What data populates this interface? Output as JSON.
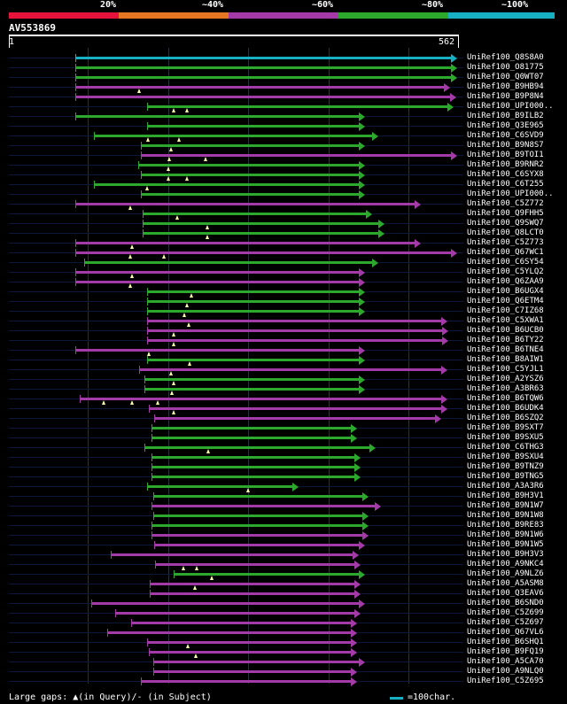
{
  "query": {
    "id": "AV553869",
    "start": "1",
    "end": "562",
    "length": 562
  },
  "identity_legend": [
    {
      "label": "20%",
      "color": "#e8133a"
    },
    {
      "label": "~40%",
      "color": "#e57722"
    },
    {
      "label": "~60%",
      "color": "#a33aa8"
    },
    {
      "label": "~80%",
      "color": "#2ca92c"
    },
    {
      "label": "~100%",
      "color": "#17b0c3"
    }
  ],
  "hit_colors": {
    "cyan": "#17b0c3",
    "green": "#2ca92c",
    "magenta": "#a33aa8"
  },
  "hits": [
    {
      "label": "UniRef100_Q8S8A0",
      "color": "cyan",
      "q_start": 84,
      "q_end": 562,
      "gaps": []
    },
    {
      "label": "UniRef100_O81775",
      "color": "green",
      "q_start": 84,
      "q_end": 560,
      "gaps": []
    },
    {
      "label": "UniRef100_Q0WT07",
      "color": "green",
      "q_start": 84,
      "q_end": 560,
      "gaps": []
    },
    {
      "label": "UniRef100_B9HB94",
      "color": "magenta",
      "q_start": 84,
      "q_end": 549,
      "gaps": [
        164
      ]
    },
    {
      "label": "UniRef100_B9P8N4",
      "color": "magenta",
      "q_start": 84,
      "q_end": 556,
      "gaps": []
    },
    {
      "label": "UniRef100_UPI000..",
      "color": "green",
      "q_start": 174,
      "q_end": 553,
      "gaps": [
        207,
        223
      ]
    },
    {
      "label": "UniRef100_B9ILB2",
      "color": "green",
      "q_start": 84,
      "q_end": 442,
      "gaps": []
    },
    {
      "label": "UniRef100_Q3E965",
      "color": "green",
      "q_start": 174,
      "q_end": 442,
      "gaps": []
    },
    {
      "label": "UniRef100_C6SVD9",
      "color": "green",
      "q_start": 107,
      "q_end": 459,
      "gaps": [
        175,
        213
      ]
    },
    {
      "label": "UniRef100_B9N8S7",
      "color": "green",
      "q_start": 166,
      "q_end": 442,
      "gaps": [
        204
      ]
    },
    {
      "label": "UniRef100_B9TOI1",
      "color": "magenta",
      "q_start": 166,
      "q_end": 566,
      "gaps": [
        201,
        247
      ]
    },
    {
      "label": "UniRef100_B9RNR2",
      "color": "green",
      "q_start": 163,
      "q_end": 442,
      "gaps": [
        200
      ]
    },
    {
      "label": "UniRef100_C6SYX8",
      "color": "green",
      "q_start": 166,
      "q_end": 442,
      "gaps": [
        200,
        223
      ]
    },
    {
      "label": "UniRef100_C6T255",
      "color": "green",
      "q_start": 107,
      "q_end": 442,
      "gaps": [
        174
      ]
    },
    {
      "label": "UniRef100_UPI000..",
      "color": "green",
      "q_start": 166,
      "q_end": 442,
      "gaps": []
    },
    {
      "label": "UniRef100_C5Z772",
      "color": "magenta",
      "q_start": 84,
      "q_end": 512,
      "gaps": [
        153
      ]
    },
    {
      "label": "UniRef100_Q9FHH5",
      "color": "green",
      "q_start": 168,
      "q_end": 451,
      "gaps": [
        211
      ]
    },
    {
      "label": "UniRef100_Q9SWQ7",
      "color": "green",
      "q_start": 168,
      "q_end": 467,
      "gaps": [
        249
      ]
    },
    {
      "label": "UniRef100_Q8LCT0",
      "color": "green",
      "q_start": 168,
      "q_end": 467,
      "gaps": [
        249
      ]
    },
    {
      "label": "UniRef100_C5Z773",
      "color": "magenta",
      "q_start": 84,
      "q_end": 512,
      "gaps": [
        155
      ]
    },
    {
      "label": "UniRef100_Q67WC1",
      "color": "magenta",
      "q_start": 84,
      "q_end": 568,
      "gaps": [
        153,
        195
      ]
    },
    {
      "label": "UniRef100_C6SY54",
      "color": "green",
      "q_start": 95,
      "q_end": 459,
      "gaps": []
    },
    {
      "label": "UniRef100_C5YLQ2",
      "color": "magenta",
      "q_start": 84,
      "q_end": 442,
      "gaps": [
        155
      ]
    },
    {
      "label": "UniRef100_Q6ZAA9",
      "color": "magenta",
      "q_start": 84,
      "q_end": 442,
      "gaps": [
        153
      ]
    },
    {
      "label": "UniRef100_B6UGX4",
      "color": "green",
      "q_start": 174,
      "q_end": 442,
      "gaps": [
        229
      ]
    },
    {
      "label": "UniRef100_Q6ETM4",
      "color": "green",
      "q_start": 174,
      "q_end": 442,
      "gaps": [
        223
      ]
    },
    {
      "label": "UniRef100_C7IZ68",
      "color": "green",
      "q_start": 174,
      "q_end": 442,
      "gaps": [
        220
      ]
    },
    {
      "label": "UniRef100_C5XWA1",
      "color": "magenta",
      "q_start": 174,
      "q_end": 545,
      "gaps": [
        226
      ]
    },
    {
      "label": "UniRef100_B6UCB0",
      "color": "magenta",
      "q_start": 174,
      "q_end": 547,
      "gaps": [
        207
      ]
    },
    {
      "label": "UniRef100_B6TY22",
      "color": "magenta",
      "q_start": 174,
      "q_end": 547,
      "gaps": [
        207
      ]
    },
    {
      "label": "UniRef100_B6TNE4",
      "color": "magenta",
      "q_start": 84,
      "q_end": 442,
      "gaps": [
        176
      ]
    },
    {
      "label": "UniRef100_B8AIW1",
      "color": "green",
      "q_start": 174,
      "q_end": 442,
      "gaps": [
        227
      ]
    },
    {
      "label": "UniRef100_C5YJL1",
      "color": "magenta",
      "q_start": 164,
      "q_end": 545,
      "gaps": [
        204
      ]
    },
    {
      "label": "UniRef100_A2YSZ6",
      "color": "green",
      "q_start": 170,
      "q_end": 442,
      "gaps": [
        207
      ]
    },
    {
      "label": "UniRef100_A3BR63",
      "color": "green",
      "q_start": 170,
      "q_end": 442,
      "gaps": [
        205
      ]
    },
    {
      "label": "UniRef100_B6TQW6",
      "color": "magenta",
      "q_start": 89,
      "q_end": 545,
      "gaps": [
        119,
        155,
        187
      ]
    },
    {
      "label": "UniRef100_B6UDK4",
      "color": "magenta",
      "q_start": 176,
      "q_end": 545,
      "gaps": [
        207
      ]
    },
    {
      "label": "UniRef100_B6SZQ2",
      "color": "magenta",
      "q_start": 183,
      "q_end": 538,
      "gaps": []
    },
    {
      "label": "UniRef100_B9SXT7",
      "color": "green",
      "q_start": 179,
      "q_end": 432,
      "gaps": []
    },
    {
      "label": "UniRef100_B9SXU5",
      "color": "green",
      "q_start": 179,
      "q_end": 432,
      "gaps": []
    },
    {
      "label": "UniRef100_C6THG3",
      "color": "green",
      "q_start": 170,
      "q_end": 456,
      "gaps": [
        250
      ]
    },
    {
      "label": "UniRef100_B9SXU4",
      "color": "green",
      "q_start": 179,
      "q_end": 437,
      "gaps": []
    },
    {
      "label": "UniRef100_B9TNZ9",
      "color": "green",
      "q_start": 179,
      "q_end": 437,
      "gaps": []
    },
    {
      "label": "UniRef100_B9TNG5",
      "color": "green",
      "q_start": 179,
      "q_end": 437,
      "gaps": []
    },
    {
      "label": "UniRef100_A3A3R6",
      "color": "green",
      "q_start": 174,
      "q_end": 359,
      "gaps": [
        300
      ]
    },
    {
      "label": "UniRef100_B9H3V1",
      "color": "green",
      "q_start": 181,
      "q_end": 447,
      "gaps": []
    },
    {
      "label": "UniRef100_B9N1W7",
      "color": "magenta",
      "q_start": 179,
      "q_end": 462,
      "gaps": []
    },
    {
      "label": "UniRef100_B9N1W8",
      "color": "green",
      "q_start": 181,
      "q_end": 447,
      "gaps": []
    },
    {
      "label": "UniRef100_B9RE83",
      "color": "green",
      "q_start": 179,
      "q_end": 447,
      "gaps": []
    },
    {
      "label": "UniRef100_B9N1W6",
      "color": "magenta",
      "q_start": 179,
      "q_end": 447,
      "gaps": []
    },
    {
      "label": "UniRef100_B9N1W5",
      "color": "magenta",
      "q_start": 183,
      "q_end": 442,
      "gaps": []
    },
    {
      "label": "UniRef100_B9H3V3",
      "color": "magenta",
      "q_start": 128,
      "q_end": 435,
      "gaps": []
    },
    {
      "label": "UniRef100_A9NKC4",
      "color": "magenta",
      "q_start": 184,
      "q_end": 437,
      "gaps": [
        219,
        236
      ]
    },
    {
      "label": "UniRef100_A9NLZ6",
      "color": "green",
      "q_start": 207,
      "q_end": 442,
      "gaps": [
        254
      ]
    },
    {
      "label": "UniRef100_A5ASM8",
      "color": "magenta",
      "q_start": 177,
      "q_end": 437,
      "gaps": [
        233
      ]
    },
    {
      "label": "UniRef100_Q3EAV6",
      "color": "magenta",
      "q_start": 177,
      "q_end": 437,
      "gaps": []
    },
    {
      "label": "UniRef100_B6SND0",
      "color": "magenta",
      "q_start": 104,
      "q_end": 442,
      "gaps": []
    },
    {
      "label": "UniRef100_C5Z699",
      "color": "magenta",
      "q_start": 134,
      "q_end": 437,
      "gaps": []
    },
    {
      "label": "UniRef100_C5Z697",
      "color": "magenta",
      "q_start": 154,
      "q_end": 432,
      "gaps": []
    },
    {
      "label": "UniRef100_Q67VL6",
      "color": "magenta",
      "q_start": 124,
      "q_end": 432,
      "gaps": []
    },
    {
      "label": "UniRef100_B6SHQ1",
      "color": "magenta",
      "q_start": 174,
      "q_end": 432,
      "gaps": [
        224
      ]
    },
    {
      "label": "UniRef100_B9FQ19",
      "color": "magenta",
      "q_start": 176,
      "q_end": 432,
      "gaps": [
        234
      ]
    },
    {
      "label": "UniRef100_A5CA70",
      "color": "magenta",
      "q_start": 181,
      "q_end": 442,
      "gaps": []
    },
    {
      "label": "UniRef100_A9NLQ0",
      "color": "magenta",
      "q_start": 181,
      "q_end": 432,
      "gaps": []
    },
    {
      "label": "UniRef100_C5Z695",
      "color": "magenta",
      "q_start": 166,
      "q_end": 432,
      "gaps": []
    }
  ],
  "footer": {
    "gap_legend": "Large gaps: ▲(in Query)/- (in Subject)",
    "scale_legend": "=100char."
  }
}
